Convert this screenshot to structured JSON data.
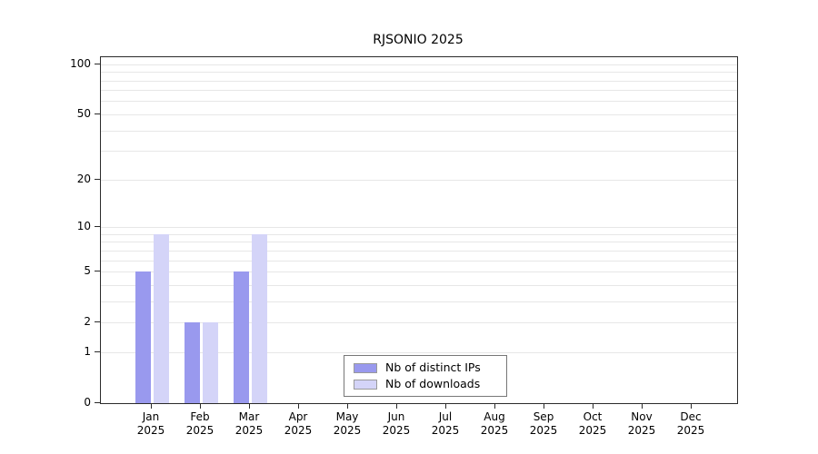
{
  "title": "RJSONIO 2025",
  "chart_data": {
    "type": "bar",
    "title": "RJSONIO 2025",
    "categories": [
      "Jan",
      "Feb",
      "Mar",
      "Apr",
      "May",
      "Jun",
      "Jul",
      "Aug",
      "Sep",
      "Oct",
      "Nov",
      "Dec"
    ],
    "year": "2025",
    "series": [
      {
        "name": "Nb of distinct IPs",
        "color": "#9999ee",
        "values": [
          5,
          2,
          5,
          0,
          0,
          0,
          0,
          0,
          0,
          0,
          0,
          0
        ]
      },
      {
        "name": "Nb of downloads",
        "color": "#d4d4f8",
        "values": [
          9,
          2,
          9,
          0,
          0,
          0,
          0,
          0,
          0,
          0,
          0,
          0
        ]
      }
    ],
    "y_ticks": [
      0,
      1,
      2,
      5,
      10,
      20,
      50,
      100
    ],
    "y_scale": "log1p",
    "y_axis_max": 110,
    "grid_values": [
      1,
      2,
      3,
      4,
      5,
      6,
      7,
      8,
      9,
      10,
      20,
      30,
      40,
      50,
      60,
      70,
      80,
      90,
      100
    ],
    "grid": "horizontal-only",
    "legend_position": "bottom-center",
    "xlabel": "",
    "ylabel": ""
  }
}
